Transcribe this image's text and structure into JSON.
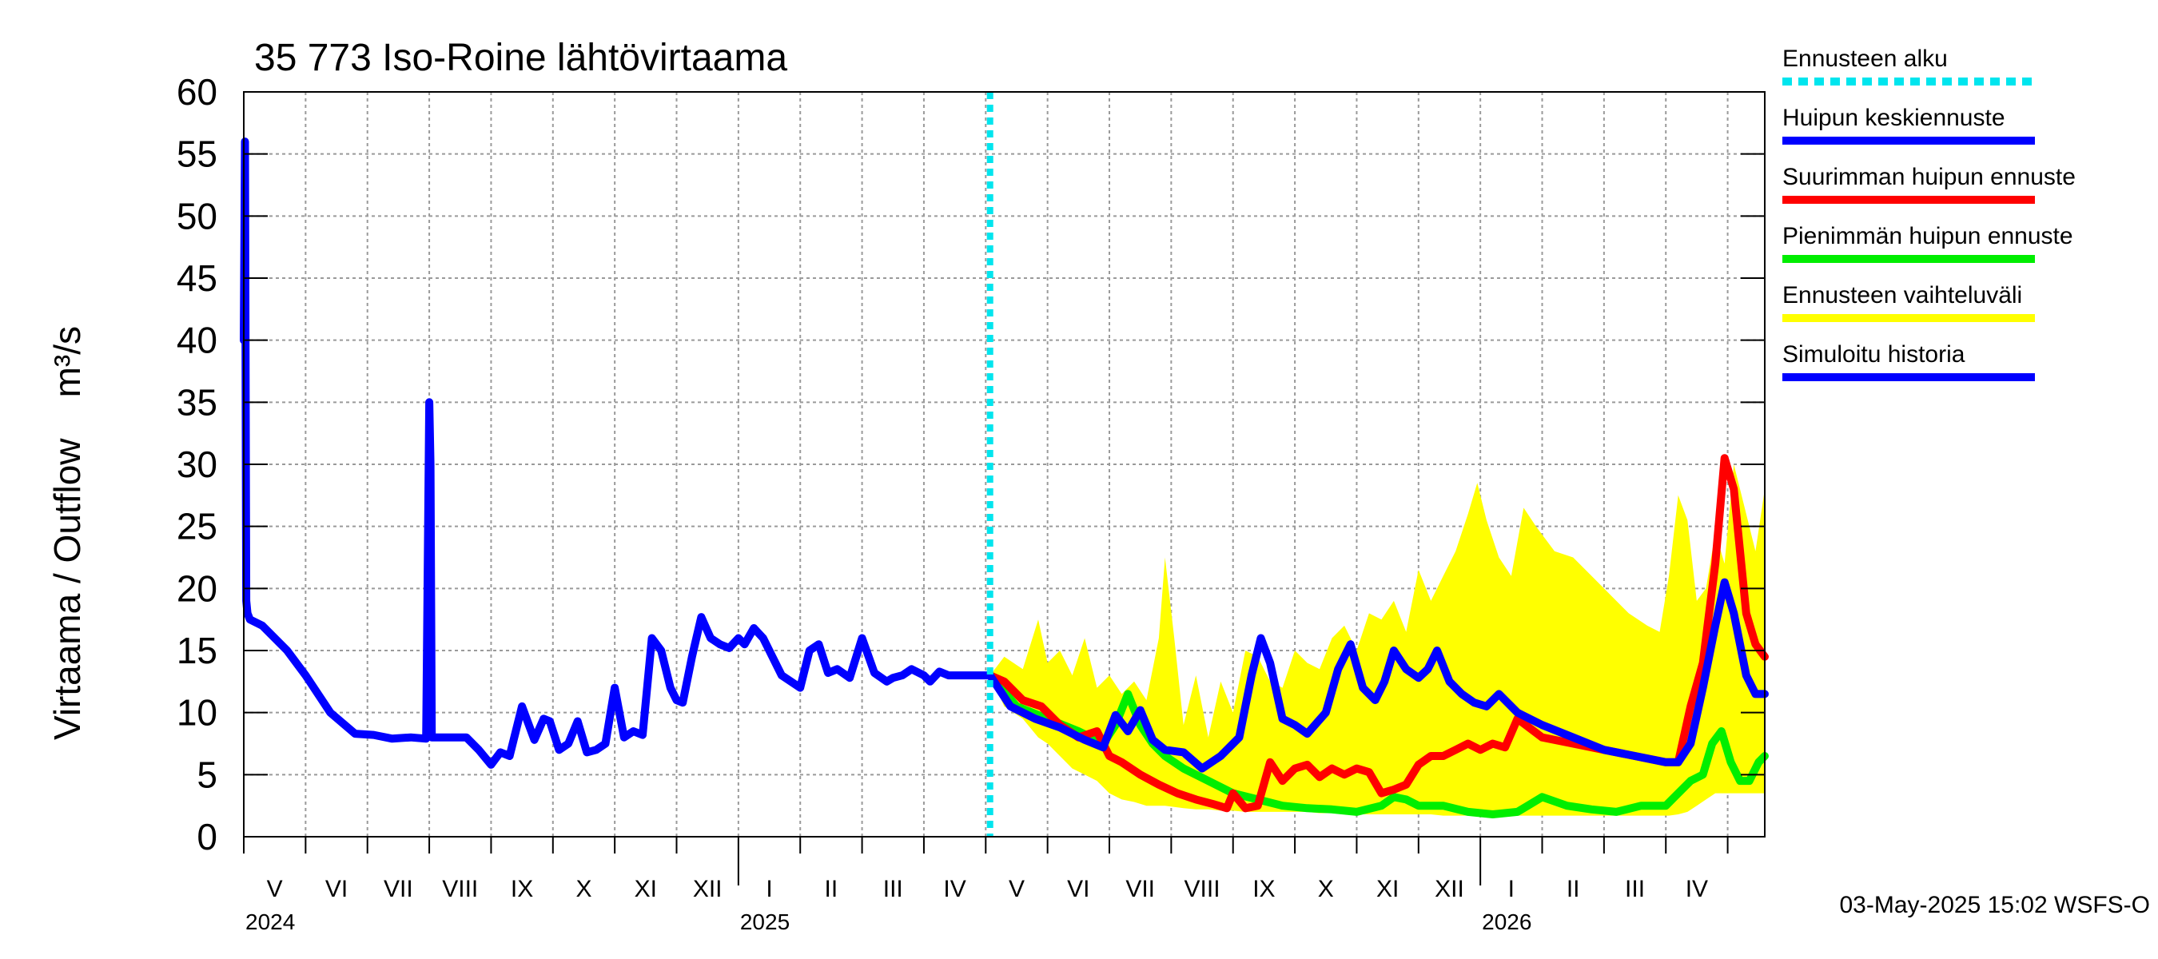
{
  "chart_data": {
    "type": "line",
    "title": "35 773 Iso-Roine lähtövirtaama",
    "ylabel": "Virtaama / Outflow    m³/s",
    "ylim": [
      0,
      60
    ],
    "yticks": [
      0,
      5,
      10,
      15,
      20,
      25,
      30,
      35,
      40,
      45,
      50,
      55,
      60
    ],
    "xlim": [
      0,
      24.6
    ],
    "x_unit": "months since 2024-05-01",
    "months": [
      {
        "label": "V",
        "x": 0.5
      },
      {
        "label": "VI",
        "x": 1.5
      },
      {
        "label": "VII",
        "x": 2.5
      },
      {
        "label": "VIII",
        "x": 3.5
      },
      {
        "label": "IX",
        "x": 4.5
      },
      {
        "label": "X",
        "x": 5.5
      },
      {
        "label": "XI",
        "x": 6.5
      },
      {
        "label": "XII",
        "x": 7.5
      },
      {
        "label": "I",
        "x": 8.5
      },
      {
        "label": "II",
        "x": 9.5
      },
      {
        "label": "III",
        "x": 10.5
      },
      {
        "label": "IV",
        "x": 11.5
      },
      {
        "label": "V",
        "x": 12.5
      },
      {
        "label": "VI",
        "x": 13.5
      },
      {
        "label": "VII",
        "x": 14.5
      },
      {
        "label": "VIII",
        "x": 15.5
      },
      {
        "label": "IX",
        "x": 16.5
      },
      {
        "label": "X",
        "x": 17.5
      },
      {
        "label": "XI",
        "x": 18.5
      },
      {
        "label": "XII",
        "x": 19.5
      },
      {
        "label": "I",
        "x": 20.5
      },
      {
        "label": "II",
        "x": 21.5
      },
      {
        "label": "III",
        "x": 22.5
      },
      {
        "label": "IV",
        "x": 23.5
      }
    ],
    "years": [
      {
        "label": "2024",
        "x": 0
      },
      {
        "label": "2025",
        "x": 8
      },
      {
        "label": "2026",
        "x": 20
      }
    ],
    "forecast_start_x": 12.07,
    "series": [
      {
        "name": "Simuloitu historia",
        "color": "#0000ff",
        "x": [
          0,
          0.02,
          0.04,
          0.06,
          0.1,
          0.3,
          0.7,
          1.0,
          1.4,
          1.8,
          2.1,
          2.4,
          2.7,
          2.95,
          3.0,
          3.02,
          3.04,
          3.06,
          3.3,
          3.6,
          3.8,
          4.0,
          4.15,
          4.3,
          4.5,
          4.7,
          4.85,
          4.95,
          5.1,
          5.25,
          5.4,
          5.55,
          5.7,
          5.85,
          6.0,
          6.15,
          6.3,
          6.45,
          6.6,
          6.75,
          6.9,
          7.0,
          7.1,
          7.25,
          7.4,
          7.55,
          7.7,
          7.85,
          8.0,
          8.1,
          8.25,
          8.4,
          8.55,
          8.7,
          8.85,
          9.0,
          9.15,
          9.3,
          9.45,
          9.6,
          9.8,
          10.0,
          10.2,
          10.4,
          10.5,
          10.65,
          10.8,
          11.0,
          11.1,
          11.25,
          11.4,
          11.55,
          11.7,
          11.85,
          12.0,
          12.07
        ],
        "y": [
          40,
          56,
          19,
          18,
          17.5,
          17,
          15,
          13,
          10,
          8.3,
          8.2,
          7.9,
          8.0,
          7.9,
          35,
          30,
          8.0,
          8.0,
          8.0,
          8.0,
          7.0,
          5.8,
          6.8,
          6.5,
          10.5,
          7.8,
          9.5,
          9.3,
          7.0,
          7.5,
          9.3,
          6.8,
          7.0,
          7.5,
          12.0,
          8.0,
          8.5,
          8.2,
          16.0,
          15.0,
          12.0,
          11.0,
          10.8,
          14.5,
          17.7,
          16.0,
          15.5,
          15.2,
          16.0,
          15.5,
          16.8,
          16.0,
          14.5,
          13.0,
          12.5,
          12.0,
          15.0,
          15.5,
          13.2,
          13.5,
          12.8,
          16.0,
          13.2,
          12.5,
          12.8,
          13.0,
          13.5,
          13.0,
          12.5,
          13.3,
          13.0,
          13.0,
          13.0,
          13.0,
          13.0,
          13.0
        ]
      },
      {
        "name": "Huipun keskiennuste",
        "color": "#0000ff",
        "x": [
          12.07,
          12.4,
          12.8,
          13.2,
          13.6,
          13.9,
          14.1,
          14.3,
          14.5,
          14.7,
          14.9,
          15.2,
          15.5,
          15.8,
          16.1,
          16.3,
          16.45,
          16.6,
          16.8,
          17.0,
          17.2,
          17.5,
          17.7,
          17.9,
          18.1,
          18.3,
          18.45,
          18.6,
          18.8,
          19.0,
          19.15,
          19.3,
          19.5,
          19.7,
          19.9,
          20.1,
          20.3,
          20.6,
          21.0,
          21.5,
          22.0,
          22.5,
          23.0,
          23.2,
          23.4,
          23.6,
          23.8,
          23.95,
          24.1,
          24.3,
          24.45,
          24.6
        ],
        "y": [
          13,
          10.5,
          9.5,
          8.8,
          7.8,
          7.2,
          9.8,
          8.5,
          10.2,
          7.8,
          7.0,
          6.8,
          5.5,
          6.5,
          8.0,
          13.0,
          16.0,
          14.0,
          9.5,
          9.0,
          8.3,
          10.0,
          13.5,
          15.5,
          12.0,
          11.0,
          12.5,
          15.0,
          13.5,
          12.8,
          13.5,
          15.0,
          12.5,
          11.5,
          10.8,
          10.5,
          11.5,
          10.0,
          9.0,
          8.0,
          7.0,
          6.5,
          6.0,
          6.0,
          7.5,
          12.0,
          17.0,
          20.5,
          18.0,
          13.0,
          11.5,
          11.5
        ]
      },
      {
        "name": "Suurimman huipun ennuste",
        "color": "#ff0000",
        "x": [
          12.07,
          12.3,
          12.6,
          12.9,
          13.2,
          13.5,
          13.8,
          14.0,
          14.2,
          14.5,
          14.8,
          15.1,
          15.4,
          15.7,
          15.9,
          16.0,
          16.2,
          16.4,
          16.6,
          16.8,
          17.0,
          17.2,
          17.4,
          17.6,
          17.8,
          18.0,
          18.2,
          18.4,
          18.6,
          18.8,
          19.0,
          19.2,
          19.4,
          19.6,
          19.8,
          20.0,
          20.2,
          20.4,
          20.6,
          21.0,
          21.5,
          22.0,
          22.5,
          23.0,
          23.2,
          23.4,
          23.6,
          23.8,
          23.95,
          24.1,
          24.3,
          24.45,
          24.6
        ],
        "y": [
          13,
          12.5,
          11.0,
          10.5,
          9.0,
          8.0,
          8.5,
          6.5,
          6.0,
          5.0,
          4.2,
          3.5,
          3.0,
          2.6,
          2.3,
          3.5,
          2.3,
          2.5,
          6.0,
          4.5,
          5.5,
          5.8,
          4.8,
          5.5,
          5.0,
          5.5,
          5.2,
          3.5,
          3.8,
          4.2,
          5.8,
          6.5,
          6.5,
          7.0,
          7.5,
          7.0,
          7.5,
          7.2,
          9.5,
          8.0,
          7.5,
          7.0,
          6.5,
          6.0,
          6.0,
          10.5,
          14.0,
          22.0,
          30.5,
          28.0,
          18.0,
          15.5,
          14.5
        ]
      },
      {
        "name": "Pienimmän huipun ennuste",
        "color": "#00ee00",
        "x": [
          12.07,
          12.5,
          13.0,
          13.5,
          13.9,
          14.1,
          14.3,
          14.5,
          14.7,
          14.9,
          15.2,
          15.6,
          16.0,
          16.4,
          16.8,
          17.2,
          17.6,
          18.0,
          18.4,
          18.6,
          18.8,
          19.0,
          19.4,
          19.8,
          20.2,
          20.6,
          21.0,
          21.4,
          21.8,
          22.2,
          22.6,
          23.0,
          23.2,
          23.4,
          23.6,
          23.75,
          23.9,
          24.05,
          24.2,
          24.35,
          24.5,
          24.6
        ],
        "y": [
          13,
          10.5,
          9.5,
          8.5,
          7.5,
          9.0,
          11.5,
          9.0,
          7.5,
          6.5,
          5.5,
          4.5,
          3.5,
          3.0,
          2.5,
          2.3,
          2.2,
          2.0,
          2.5,
          3.2,
          3.0,
          2.5,
          2.5,
          2.0,
          1.8,
          2.0,
          3.2,
          2.5,
          2.2,
          2.0,
          2.5,
          2.5,
          3.5,
          4.5,
          5.0,
          7.5,
          8.5,
          6.0,
          4.5,
          4.5,
          6.0,
          6.5
        ]
      }
    ],
    "range": {
      "name": "Ennusteen vaihteluväli",
      "color": "#ffff00",
      "x": [
        12.07,
        12.3,
        12.6,
        12.85,
        13.0,
        13.2,
        13.4,
        13.6,
        13.8,
        14.0,
        14.2,
        14.4,
        14.6,
        14.8,
        14.9,
        15.05,
        15.2,
        15.4,
        15.6,
        15.8,
        16.0,
        16.2,
        16.4,
        16.6,
        16.8,
        17.0,
        17.2,
        17.4,
        17.6,
        17.8,
        18.0,
        18.2,
        18.4,
        18.6,
        18.8,
        19.0,
        19.2,
        19.4,
        19.6,
        19.8,
        19.95,
        20.1,
        20.3,
        20.5,
        20.7,
        20.9,
        21.2,
        21.5,
        21.8,
        22.1,
        22.4,
        22.7,
        22.9,
        23.05,
        23.2,
        23.35,
        23.5,
        23.65,
        23.8,
        23.95,
        24.1,
        24.3,
        24.45,
        24.6
      ],
      "upper": [
        13,
        14.5,
        13.5,
        17.5,
        14.0,
        15.0,
        13.0,
        16.0,
        12.0,
        13.0,
        11.5,
        12.5,
        11.0,
        16.0,
        22.5,
        16.0,
        9.0,
        13.0,
        8.0,
        12.5,
        10.0,
        15.0,
        14.5,
        12.5,
        12.0,
        15.0,
        14.0,
        13.5,
        16.0,
        17.0,
        15.0,
        18.0,
        17.5,
        19.0,
        16.5,
        21.5,
        19.0,
        21.0,
        23.0,
        26.0,
        28.5,
        25.5,
        22.5,
        21.0,
        26.5,
        25.0,
        23.0,
        22.5,
        21.0,
        19.5,
        18.0,
        17.0,
        16.5,
        21.0,
        27.5,
        25.5,
        19.0,
        20.0,
        24.5,
        22.0,
        30.0,
        26.0,
        23.0,
        28.0
      ],
      "lower": [
        13,
        10.5,
        9.5,
        8.0,
        7.5,
        6.5,
        5.5,
        5.0,
        4.5,
        3.5,
        3.0,
        2.8,
        2.5,
        2.5,
        2.5,
        2.4,
        2.3,
        2.2,
        2.2,
        2.1,
        2.1,
        2.0,
        2.0,
        2.0,
        2.0,
        2.0,
        2.0,
        1.9,
        1.9,
        1.9,
        1.8,
        1.8,
        1.8,
        1.8,
        1.8,
        1.8,
        1.8,
        1.7,
        1.7,
        1.7,
        1.7,
        1.7,
        1.7,
        1.7,
        1.7,
        1.7,
        1.7,
        1.7,
        1.7,
        1.7,
        1.7,
        1.7,
        1.7,
        1.7,
        1.8,
        2.0,
        2.5,
        3.0,
        3.5,
        3.5,
        3.5,
        3.5,
        3.5,
        3.5
      ]
    }
  },
  "legend": [
    {
      "label": "Ennusteen alku",
      "color": "#00e5ee",
      "style": "dashed"
    },
    {
      "label": "Huipun keskiennuste",
      "color": "#0000ff",
      "style": "solid"
    },
    {
      "label": "Suurimman huipun ennuste",
      "color": "#ff0000",
      "style": "solid"
    },
    {
      "label": "Pienimmän huipun ennuste",
      "color": "#00ee00",
      "style": "solid"
    },
    {
      "label": "Ennusteen vaihteluväli",
      "color": "#ffff00",
      "style": "solid"
    },
    {
      "label": "Simuloitu historia",
      "color": "#0000ff",
      "style": "solid"
    }
  ],
  "footer": "03-May-2025 15:02 WSFS-O"
}
